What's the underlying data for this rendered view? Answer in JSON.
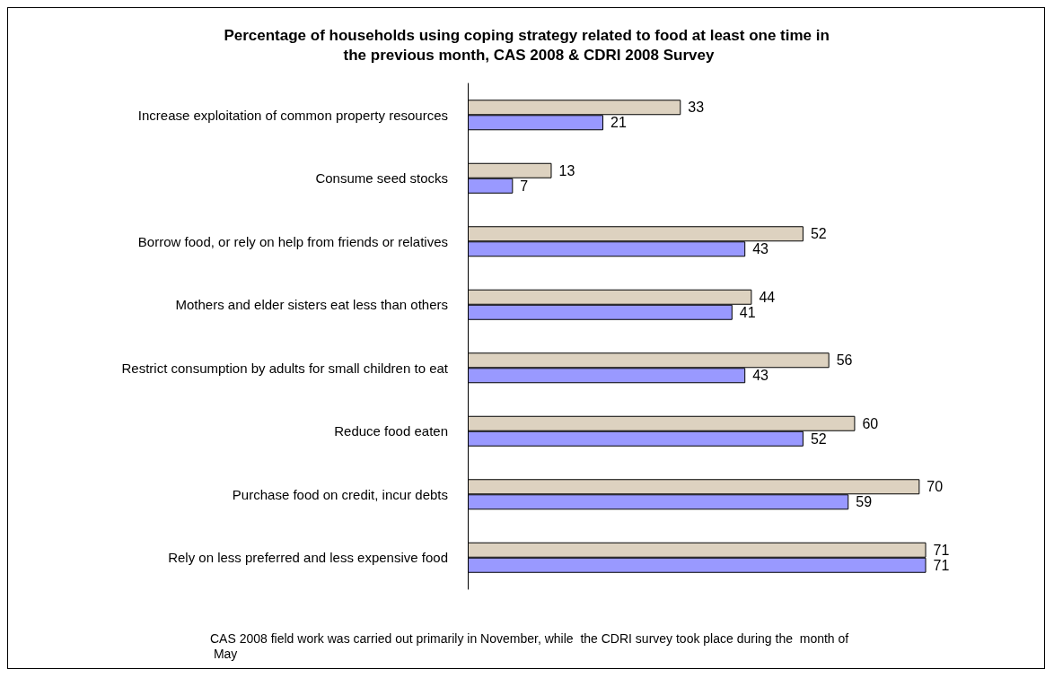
{
  "chart_data": {
    "type": "bar",
    "orientation": "horizontal",
    "title": "Percentage of households using coping strategy related to food at least one time in the previous month, CAS 2008 & CDRI 2008 Survey",
    "categories": [
      "Increase exploitation of common property resources",
      "Consume seed stocks",
      "Borrow food, or rely on help from friends or relatives",
      "Mothers and elder sisters eat less than others",
      "Restrict consumption by adults for small children to eat",
      "Reduce food eaten",
      "Purchase food on credit, incur debts",
      "Rely on less preferred and less expensive food"
    ],
    "series": [
      {
        "color": "#ddd2c0",
        "values": [
          33,
          13,
          52,
          44,
          56,
          60,
          70,
          71
        ]
      },
      {
        "color": "#9999ff",
        "values": [
          21,
          7,
          43,
          41,
          43,
          52,
          59,
          71
        ]
      }
    ],
    "data_labels": true,
    "annotations": [
      "CAS 2008 field work was carried out primarily in November, while  the CDRI survey took place during the  month of May"
    ]
  }
}
